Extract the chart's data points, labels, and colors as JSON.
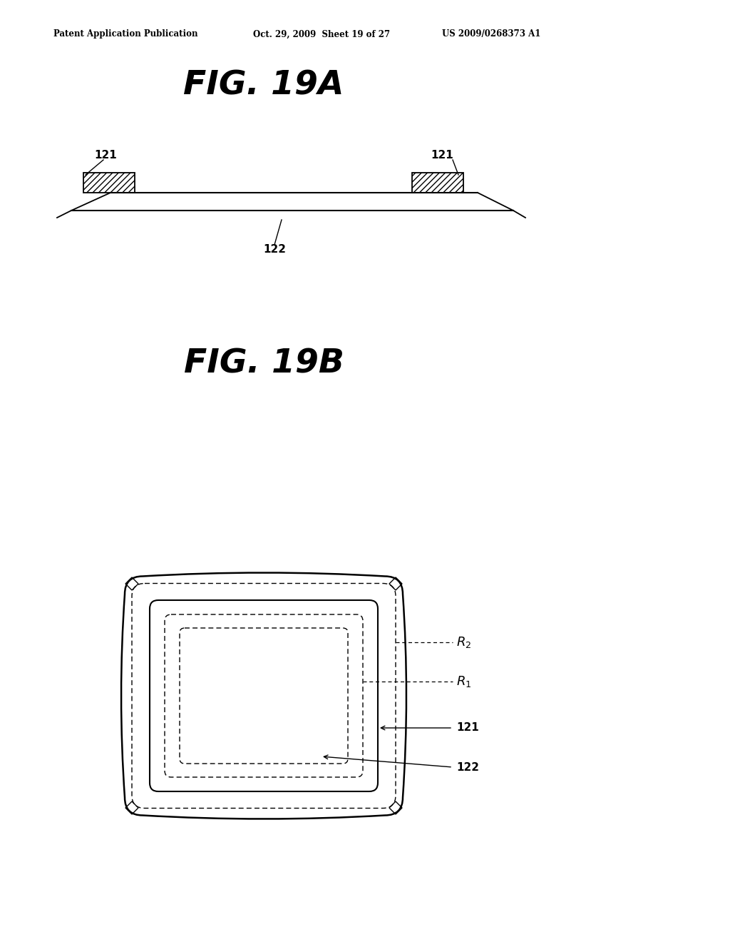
{
  "bg_color": "#ffffff",
  "header_left": "Patent Application Publication",
  "header_center": "Oct. 29, 2009  Sheet 19 of 27",
  "header_right": "US 2009/0268373 A1",
  "fig_title_A": "FIG. 19A",
  "fig_title_B": "FIG. 19B",
  "label_121": "121",
  "label_122": "122"
}
